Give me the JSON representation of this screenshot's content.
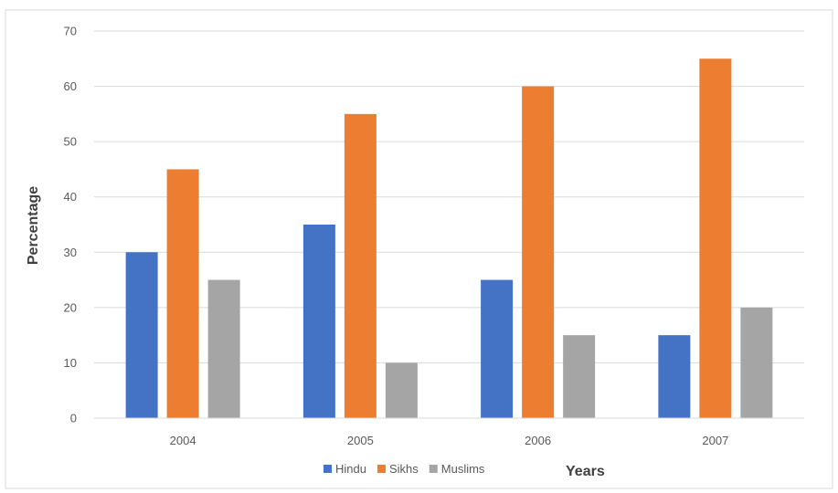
{
  "chart_data": {
    "type": "bar",
    "categories": [
      "2004",
      "2005",
      "2006",
      "2007"
    ],
    "series": [
      {
        "name": "Hindu",
        "color": "#4472C4",
        "values": [
          30,
          35,
          25,
          15
        ]
      },
      {
        "name": "Sikhs",
        "color": "#ED7D31",
        "values": [
          45,
          55,
          60,
          65
        ]
      },
      {
        "name": "Muslims",
        "color": "#A5A5A5",
        "values": [
          25,
          10,
          15,
          20
        ]
      }
    ],
    "title": "",
    "xlabel": "Years",
    "ylabel": "Percentage",
    "ylim": [
      0,
      70
    ],
    "yticks": [
      "0",
      "10",
      "20",
      "30",
      "40",
      "50",
      "60",
      "70"
    ],
    "grid": true,
    "legend_position": "bottom"
  }
}
